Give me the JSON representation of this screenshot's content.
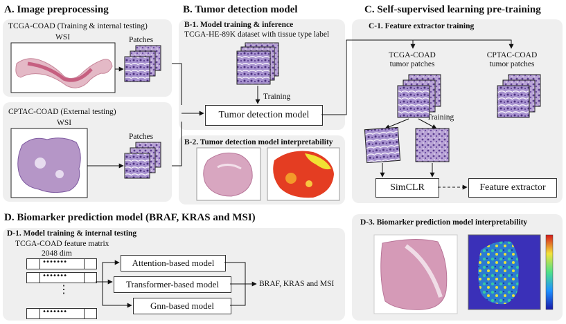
{
  "sectionA": {
    "title": "A. Image preprocessing",
    "group1": {
      "title": "TCGA-COAD (Training & internal testing)",
      "wsi": "WSI",
      "patches": "Patches"
    },
    "group2": {
      "title": "CPTAC-COAD (External testing)",
      "wsi": "WSI",
      "patches": "Patches"
    }
  },
  "sectionB": {
    "title": "B. Tumor detection model",
    "b1": {
      "title": "B-1. Model training & inference",
      "dataset": "TCGA-HE-89K dataset with tissue type label",
      "training": "Training",
      "model": "Tumor detection model"
    },
    "b2": {
      "title": "B-2. Tumor detection model interpretability"
    }
  },
  "sectionC": {
    "title": "C. Self-supervised learning pre-training",
    "c1": {
      "title": "C-1. Feature extractor training",
      "tcga_l1": "TCGA-COAD",
      "tcga_l2": "tumor patches",
      "cptac_l1": "CPTAC-COAD",
      "cptac_l2": "tumor patches",
      "training": "Training",
      "simclr": "SimCLR",
      "extractor": "Feature extractor"
    }
  },
  "sectionD": {
    "title": "D. Biomarker prediction model (BRAF, KRAS and MSI)",
    "d1": {
      "title": "D-1. Model training & internal testing",
      "matrix": "TCGA-COAD feature matrix",
      "dim": "2048 dim",
      "dots": "•••••••",
      "vdots": "⋮",
      "models": [
        "Attention-based model",
        "Transformer-based model",
        "Gnn-based model"
      ],
      "output": "BRAF, KRAS and MSI"
    },
    "d3": {
      "title": "D-3. Biomarker prediction model interpretability"
    }
  }
}
